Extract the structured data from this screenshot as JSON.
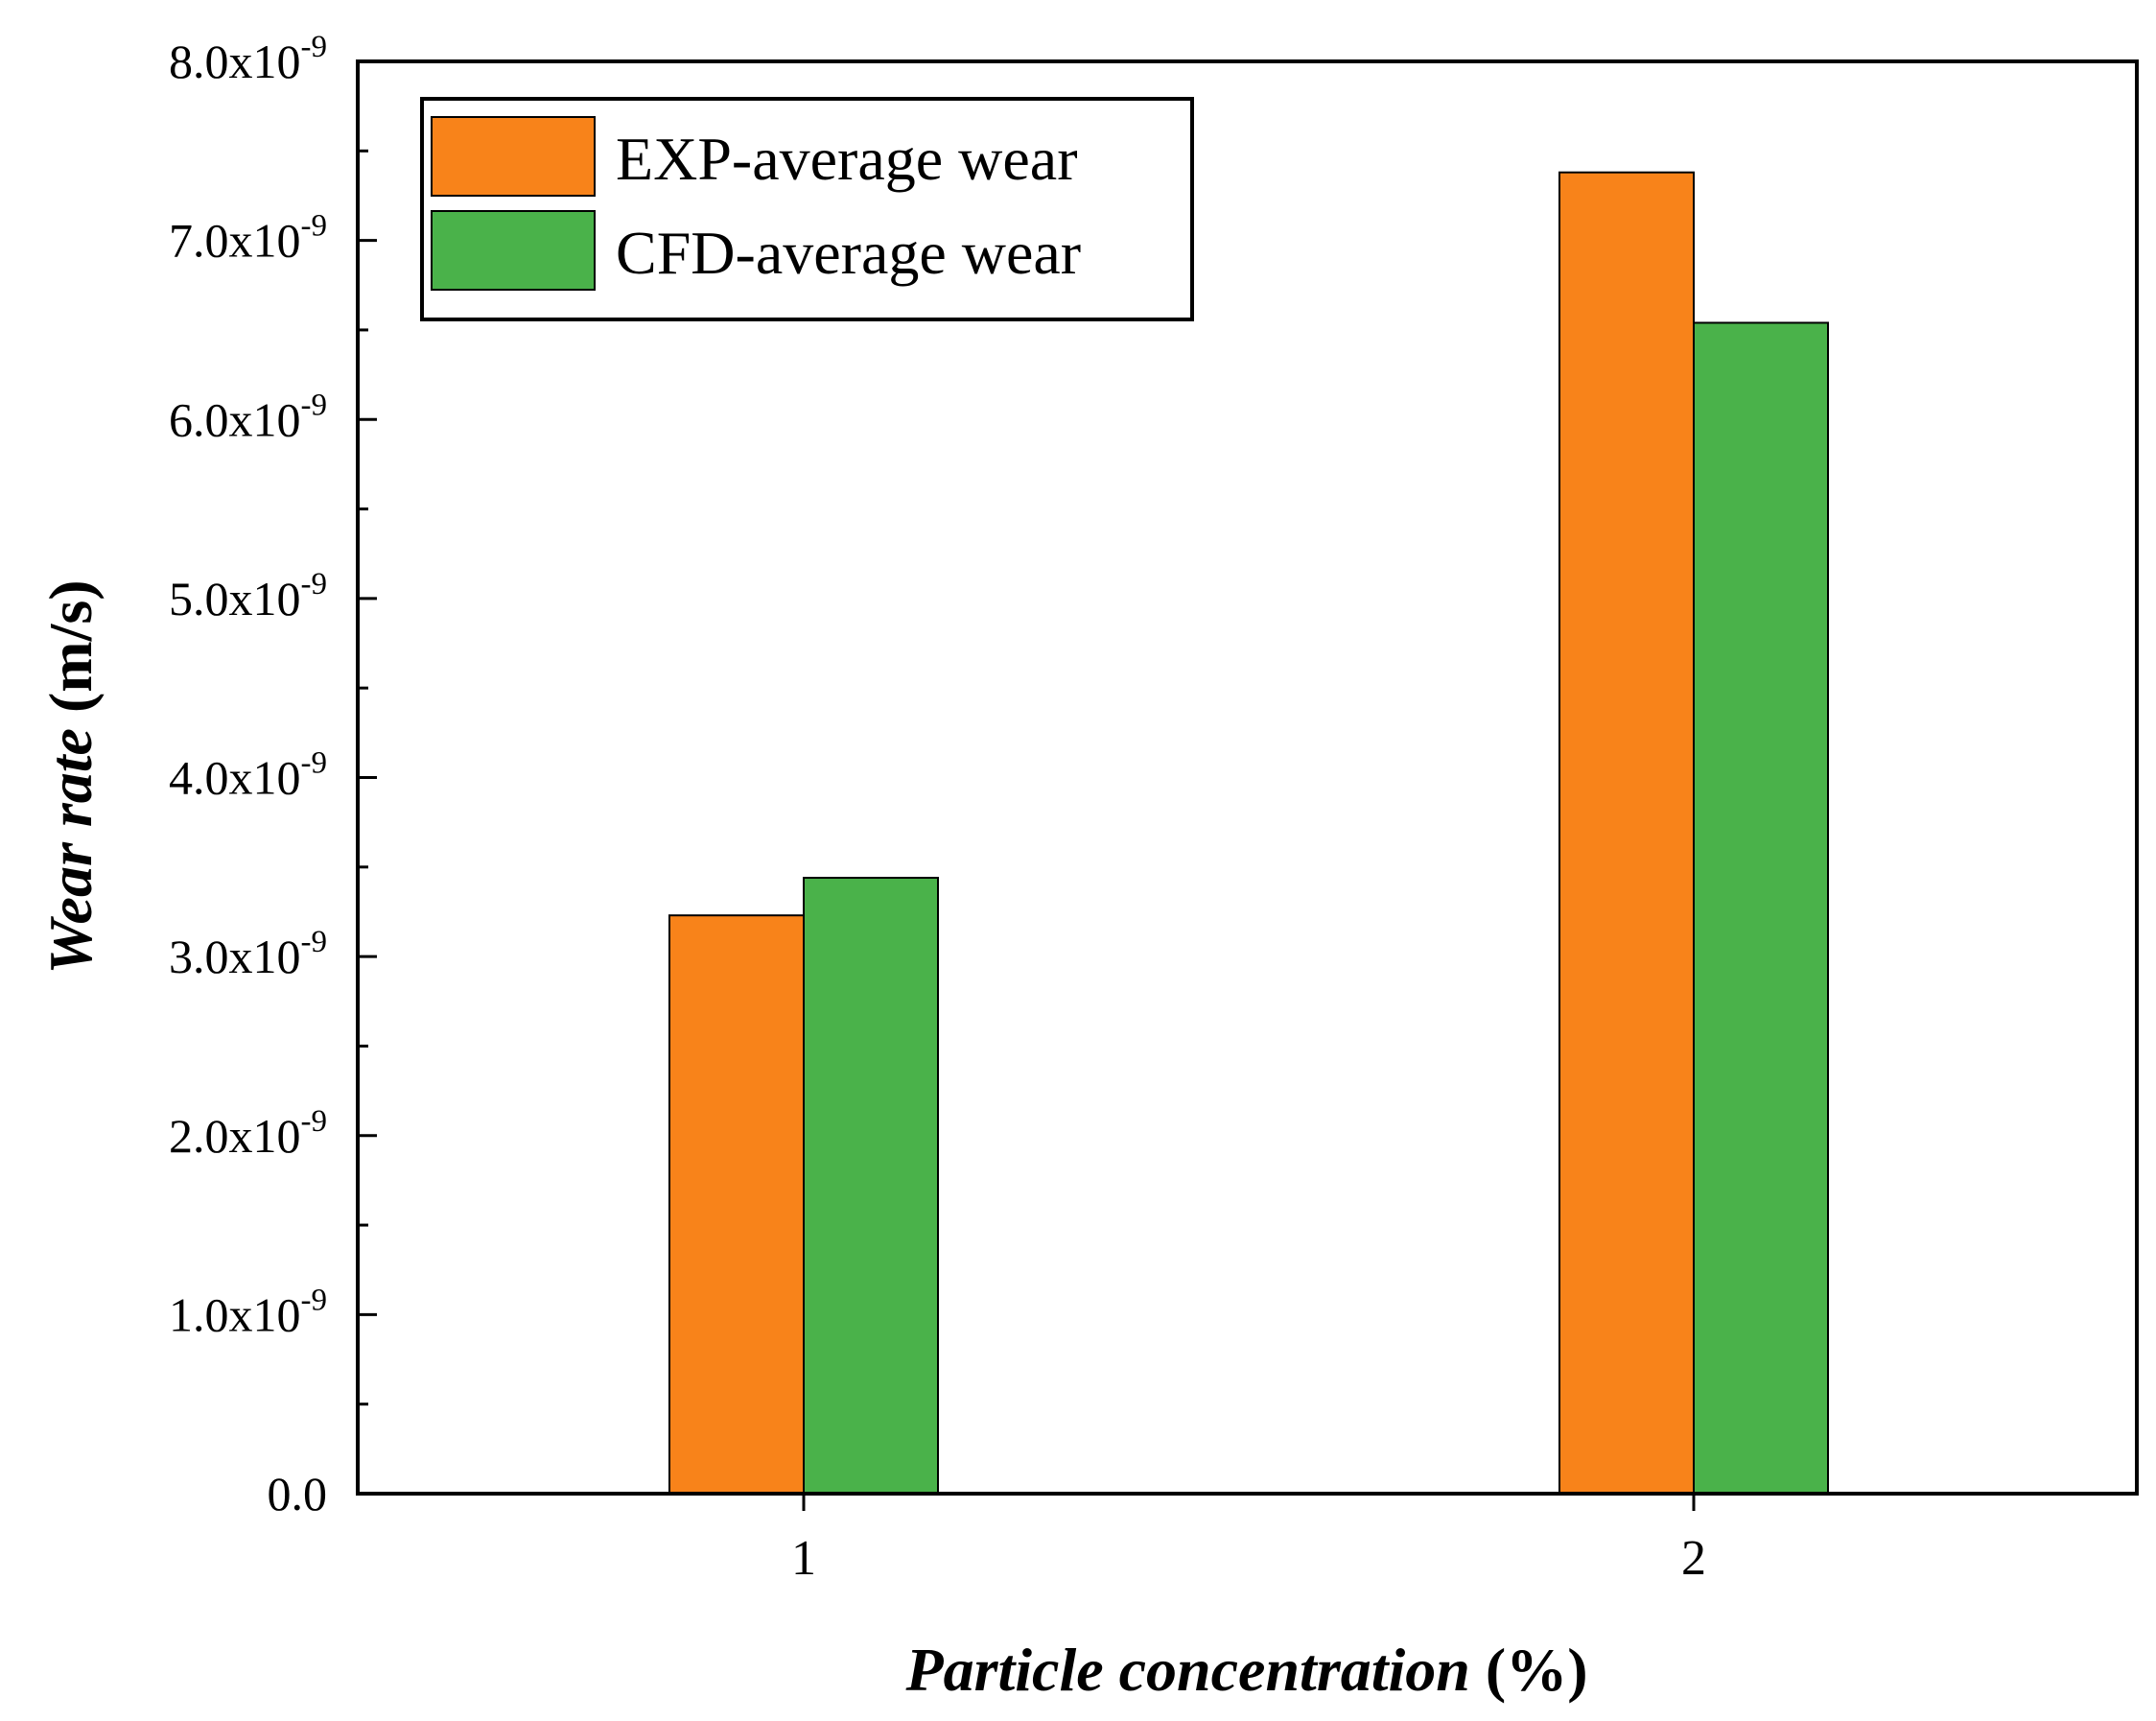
{
  "chart_data": {
    "type": "bar",
    "title": "",
    "xlabel": {
      "italic_part": "Particle concentration",
      "plain_part": " (%)"
    },
    "ylabel": {
      "italic_part": "Wear rate",
      "plain_part": " (m/s)"
    },
    "categories": [
      "1",
      "2"
    ],
    "series": [
      {
        "name": "EXP-average wear",
        "color": "#f8831a",
        "values": [
          3.23e-09,
          7.38e-09
        ]
      },
      {
        "name": "CFD-average wear",
        "color": "#4ab24a",
        "values": [
          3.44e-09,
          6.54e-09
        ]
      }
    ],
    "ylim": [
      0,
      8e-09
    ],
    "yticks": [
      {
        "value": 0,
        "mantissa": "0.0",
        "sci": false
      },
      {
        "value": 1e-09,
        "mantissa": "1.0",
        "sci": true
      },
      {
        "value": 2e-09,
        "mantissa": "2.0",
        "sci": true
      },
      {
        "value": 3e-09,
        "mantissa": "3.0",
        "sci": true
      },
      {
        "value": 4e-09,
        "mantissa": "4.0",
        "sci": true
      },
      {
        "value": 5e-09,
        "mantissa": "5.0",
        "sci": true
      },
      {
        "value": 6e-09,
        "mantissa": "6.0",
        "sci": true
      },
      {
        "value": 7e-09,
        "mantissa": "7.0",
        "sci": true
      },
      {
        "value": 8e-09,
        "mantissa": "8.0",
        "sci": true
      }
    ],
    "sci_base": "x10",
    "sci_exponent": "-9",
    "legend_position": "top-left",
    "grid": false
  }
}
